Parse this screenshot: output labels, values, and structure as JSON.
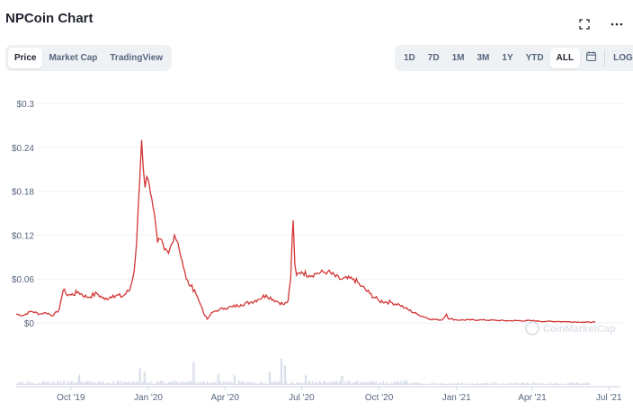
{
  "header": {
    "title": "NPCoin Chart"
  },
  "view_tabs": [
    {
      "label": "Price",
      "active": true
    },
    {
      "label": "Market Cap",
      "active": false
    },
    {
      "label": "TradingView",
      "active": false
    }
  ],
  "range_tabs": [
    {
      "label": "1D",
      "active": false
    },
    {
      "label": "7D",
      "active": false
    },
    {
      "label": "1M",
      "active": false
    },
    {
      "label": "3M",
      "active": false
    },
    {
      "label": "1Y",
      "active": false
    },
    {
      "label": "YTD",
      "active": false
    },
    {
      "label": "ALL",
      "active": true
    }
  ],
  "log_label": "LOG",
  "icons": {
    "fullscreen": "fullscreen-icon",
    "more": "more-options-icon",
    "calendar": "calendar-icon"
  },
  "colors": {
    "price_line": "#d33535",
    "volume_bar": "#cfd6e4",
    "grid": "#eff2f5",
    "axis_text": "#58667e",
    "active_bg": "#ffffff",
    "segment_bg": "#eff2f5"
  },
  "watermark": "CoinMarketCap",
  "chart_data": {
    "type": "line",
    "title": "",
    "xlabel": "",
    "ylabel": "",
    "y_ticks": [
      "$0.3",
      "$0.24",
      "$0.18",
      "$0.12",
      "$0.06",
      "$0"
    ],
    "y_tick_values": [
      0.3,
      0.24,
      0.18,
      0.12,
      0.06,
      0
    ],
    "ylim": [
      0,
      0.3
    ],
    "x_ticks": [
      "Oct '19",
      "Jan '20",
      "Apr '20",
      "Jul '20",
      "Oct '20",
      "Jan '21",
      "Apr '21",
      "Jul '21"
    ],
    "x_tick_dates": [
      "2019-10-01",
      "2020-01-01",
      "2020-04-01",
      "2020-07-01",
      "2020-10-01",
      "2021-01-01",
      "2021-04-01",
      "2021-07-01"
    ],
    "xlim": [
      "2019-07-28",
      "2021-07-20"
    ],
    "grid": true,
    "series": [
      {
        "x": [
          "2019-07-28",
          "2019-08-05",
          "2019-08-15",
          "2019-08-25",
          "2019-09-01",
          "2019-09-10",
          "2019-09-17",
          "2019-09-19",
          "2019-09-22",
          "2019-09-25",
          "2019-10-01",
          "2019-10-10",
          "2019-10-20",
          "2019-11-01",
          "2019-11-10",
          "2019-11-20",
          "2019-12-01",
          "2019-12-10",
          "2019-12-15",
          "2019-12-18",
          "2019-12-20",
          "2019-12-22",
          "2019-12-24",
          "2019-12-26",
          "2019-12-28",
          "2019-12-30",
          "2020-01-02",
          "2020-01-05",
          "2020-01-08",
          "2020-01-12",
          "2020-01-15",
          "2020-01-20",
          "2020-01-25",
          "2020-02-01",
          "2020-02-05",
          "2020-02-10",
          "2020-02-15",
          "2020-02-20",
          "2020-02-25",
          "2020-03-01",
          "2020-03-05",
          "2020-03-08",
          "2020-03-11",
          "2020-03-14",
          "2020-03-18",
          "2020-03-25",
          "2020-04-01",
          "2020-04-10",
          "2020-04-20",
          "2020-05-01",
          "2020-05-10",
          "2020-05-20",
          "2020-06-01",
          "2020-06-10",
          "2020-06-15",
          "2020-06-18",
          "2020-06-20",
          "2020-06-21",
          "2020-06-23",
          "2020-06-25",
          "2020-07-01",
          "2020-07-10",
          "2020-07-20",
          "2020-08-01",
          "2020-08-15",
          "2020-09-01",
          "2020-09-10",
          "2020-09-20",
          "2020-10-01",
          "2020-10-15",
          "2020-10-25",
          "2020-11-01",
          "2020-11-15",
          "2020-12-01",
          "2020-12-15",
          "2020-12-20",
          "2020-12-22",
          "2021-01-01",
          "2021-02-01",
          "2021-03-01",
          "2021-04-01",
          "2021-04-15",
          "2021-05-01",
          "2021-06-01",
          "2021-06-15"
        ],
        "y": [
          0.012,
          0.01,
          0.016,
          0.012,
          0.014,
          0.01,
          0.018,
          0.03,
          0.045,
          0.04,
          0.038,
          0.042,
          0.035,
          0.04,
          0.032,
          0.038,
          0.036,
          0.045,
          0.07,
          0.11,
          0.16,
          0.2,
          0.25,
          0.21,
          0.185,
          0.2,
          0.19,
          0.17,
          0.15,
          0.11,
          0.115,
          0.1,
          0.095,
          0.12,
          0.11,
          0.085,
          0.06,
          0.05,
          0.045,
          0.03,
          0.02,
          0.01,
          0.005,
          0.01,
          0.015,
          0.018,
          0.02,
          0.022,
          0.025,
          0.028,
          0.032,
          0.038,
          0.03,
          0.025,
          0.03,
          0.06,
          0.12,
          0.14,
          0.08,
          0.065,
          0.07,
          0.065,
          0.068,
          0.07,
          0.06,
          0.06,
          0.05,
          0.04,
          0.03,
          0.028,
          0.025,
          0.02,
          0.012,
          0.005,
          0.004,
          0.012,
          0.006,
          0.004,
          0.004,
          0.003,
          0.003,
          0.002,
          0.002,
          0.001,
          0.001
        ]
      }
    ]
  }
}
